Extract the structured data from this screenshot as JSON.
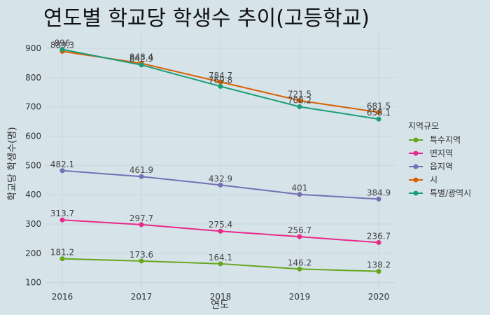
{
  "chart_data": {
    "type": "line",
    "title": "연도별 학교당 학생수 추이(고등학교)",
    "xlabel": "연도",
    "ylabel": "학교당 학생수(명)",
    "x": [
      2016,
      2017,
      2018,
      2019,
      2020
    ],
    "ylim": [
      80,
      950
    ],
    "yticks": [
      100,
      200,
      300,
      400,
      500,
      600,
      700,
      800,
      900
    ],
    "grid": true,
    "legend": {
      "title": "지역규모",
      "position": "right"
    },
    "series": [
      {
        "name": "특수지역",
        "color": "#66a61e",
        "values": [
          181.2,
          173.6,
          164.1,
          146.2,
          138.2
        ]
      },
      {
        "name": "면지역",
        "color": "#e7298a",
        "values": [
          313.7,
          297.7,
          275.4,
          256.7,
          236.7
        ]
      },
      {
        "name": "읍지역",
        "color": "#7570b3",
        "values": [
          482.1,
          461.9,
          432.9,
          401,
          384.9
        ]
      },
      {
        "name": "시",
        "color": "#d95f02",
        "values": [
          889.3,
          848.4,
          784.7,
          721.5,
          681.5
        ]
      },
      {
        "name": "특별/광역시",
        "color": "#1b9e77",
        "values": [
          896,
          842.9,
          769.8,
          700.2,
          658.1
        ]
      }
    ]
  }
}
